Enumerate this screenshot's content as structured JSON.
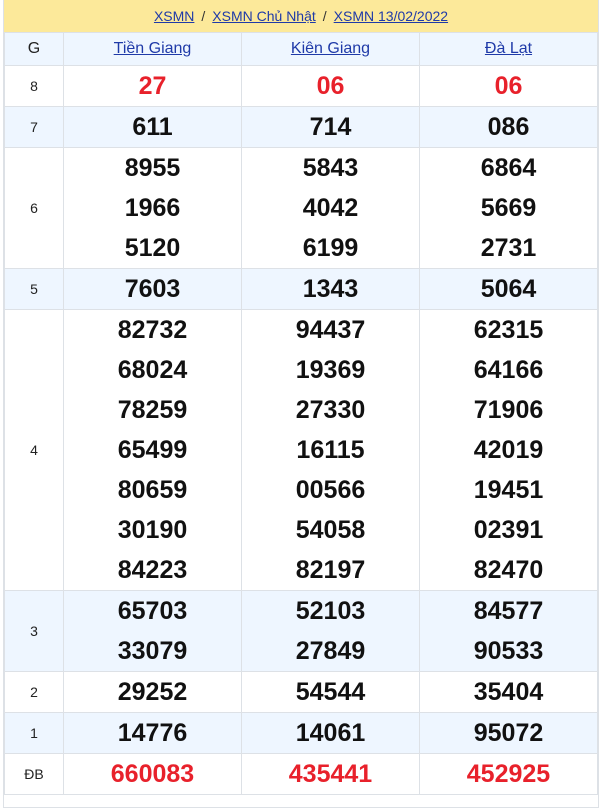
{
  "breadcrumb": [
    "XSMN",
    "XSMN Chủ Nhật",
    "XSMN 13/02/2022"
  ],
  "header": {
    "g_label": "G",
    "provinces": [
      "Tiền Giang",
      "Kiên Giang",
      "Đà Lạt"
    ]
  },
  "colors": {
    "highlight": "#e8212b",
    "breadcrumb_bg": "#fce99a",
    "alt_row_bg": "#eef6ff",
    "link": "#1f3aa8"
  },
  "prizes": [
    {
      "label": "8",
      "red": true,
      "values": [
        [
          "27"
        ],
        [
          "06"
        ],
        [
          "06"
        ]
      ]
    },
    {
      "label": "7",
      "values": [
        [
          "611"
        ],
        [
          "714"
        ],
        [
          "086"
        ]
      ]
    },
    {
      "label": "6",
      "values": [
        [
          "8955",
          "1966",
          "5120"
        ],
        [
          "5843",
          "4042",
          "6199"
        ],
        [
          "6864",
          "5669",
          "2731"
        ]
      ]
    },
    {
      "label": "5",
      "values": [
        [
          "7603"
        ],
        [
          "1343"
        ],
        [
          "5064"
        ]
      ]
    },
    {
      "label": "4",
      "values": [
        [
          "82732",
          "68024",
          "78259",
          "65499",
          "80659",
          "30190",
          "84223"
        ],
        [
          "94437",
          "19369",
          "27330",
          "16115",
          "00566",
          "54058",
          "82197"
        ],
        [
          "62315",
          "64166",
          "71906",
          "42019",
          "19451",
          "02391",
          "82470"
        ]
      ]
    },
    {
      "label": "3",
      "values": [
        [
          "65703",
          "33079"
        ],
        [
          "52103",
          "27849"
        ],
        [
          "84577",
          "90533"
        ]
      ]
    },
    {
      "label": "2",
      "values": [
        [
          "29252"
        ],
        [
          "54544"
        ],
        [
          "35404"
        ]
      ]
    },
    {
      "label": "1",
      "values": [
        [
          "14776"
        ],
        [
          "14061"
        ],
        [
          "95072"
        ]
      ]
    },
    {
      "label": "ĐB",
      "red": true,
      "values": [
        [
          "660083"
        ],
        [
          "435441"
        ],
        [
          "452925"
        ]
      ]
    }
  ]
}
